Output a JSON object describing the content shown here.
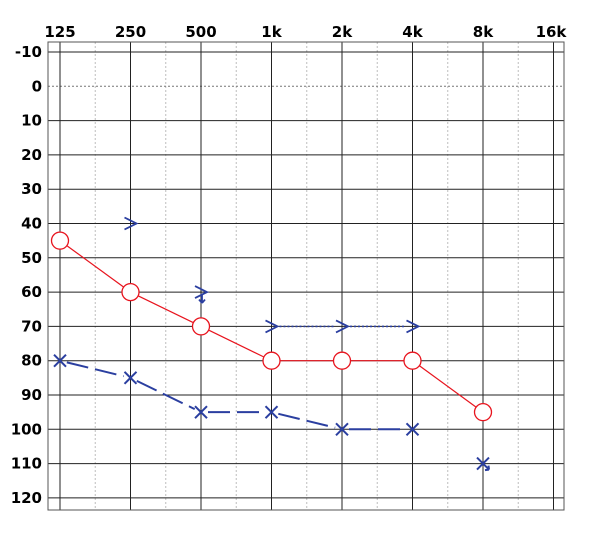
{
  "chart_data": {
    "type": "line",
    "x_ticks": [
      "125",
      "250",
      "500",
      "1k",
      "2k",
      "4k",
      "8k",
      "16k"
    ],
    "y_ticks": [
      "-10",
      "0",
      "10",
      "20",
      "30",
      "40",
      "50",
      "60",
      "70",
      "80",
      "90",
      "100",
      "110",
      "120"
    ],
    "ylim": [
      -10,
      120
    ],
    "y_inverted": true,
    "grid": true,
    "series": [
      {
        "marker": "circle",
        "color": "#e8141e",
        "line_style": "solid",
        "points": [
          {
            "x": "125",
            "y": 45
          },
          {
            "x": "250",
            "y": 60
          },
          {
            "x": "500",
            "y": 70
          },
          {
            "x": "1k",
            "y": 80
          },
          {
            "x": "2k",
            "y": 80
          },
          {
            "x": "4k",
            "y": 80
          },
          {
            "x": "8k",
            "y": 95
          }
        ]
      },
      {
        "marker": "cross",
        "color": "#2b3fa0",
        "line_style": "dashed",
        "points": [
          {
            "x": "125",
            "y": 80
          },
          {
            "x": "250",
            "y": 85
          },
          {
            "x": "500",
            "y": 95
          },
          {
            "x": "1k",
            "y": 95
          },
          {
            "x": "2k",
            "y": 100
          },
          {
            "x": "4k",
            "y": 100
          },
          {
            "x": "8k",
            "y": 110,
            "no_response": true
          }
        ]
      },
      {
        "marker": "chevron-right",
        "color": "#2b3fa0",
        "line_style": "dotted",
        "points": [
          {
            "x": "250",
            "y": 40
          },
          {
            "x": "500",
            "y": 60,
            "no_response": true
          },
          {
            "x": "1k",
            "y": 70
          },
          {
            "x": "2k",
            "y": 70
          },
          {
            "x": "4k",
            "y": 70
          }
        ]
      }
    ]
  }
}
